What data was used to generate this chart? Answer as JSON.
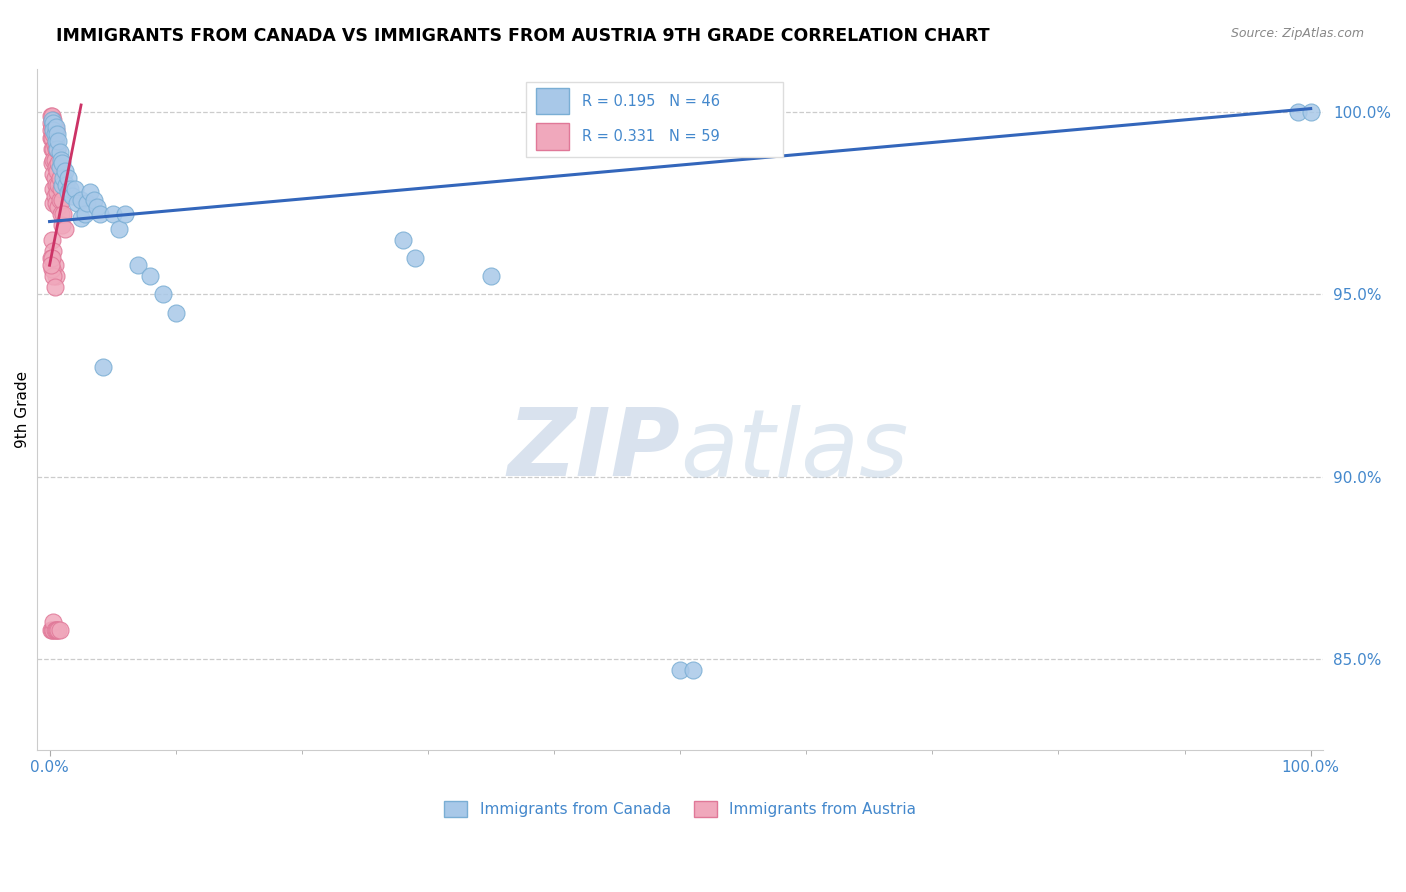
{
  "title": "IMMIGRANTS FROM CANADA VS IMMIGRANTS FROM AUSTRIA 9TH GRADE CORRELATION CHART",
  "source": "Source: ZipAtlas.com",
  "ylabel": "9th Grade",
  "xlim": [
    -0.01,
    1.01
  ],
  "ylim": [
    0.825,
    1.012
  ],
  "yticks": [
    0.85,
    0.9,
    0.95,
    1.0
  ],
  "ytick_labels": [
    "85.0%",
    "90.0%",
    "95.0%",
    "100.0%"
  ],
  "xtick_labels": [
    "0.0%",
    "100.0%"
  ],
  "canada_color": "#a8c8e8",
  "austria_color": "#f0a8bc",
  "canada_edge": "#7aaed4",
  "austria_edge": "#e07898",
  "trendline_canada_color": "#3366bb",
  "trendline_austria_color": "#cc3366",
  "R_canada": 0.195,
  "N_canada": 46,
  "R_austria": 0.331,
  "N_austria": 59,
  "canada_trendline_x": [
    0.0,
    1.0
  ],
  "canada_trendline_y": [
    0.97,
    1.001
  ],
  "austria_trendline_x": [
    0.0,
    0.025
  ],
  "austria_trendline_y": [
    0.958,
    1.002
  ],
  "canada_x": [
    0.002,
    0.003,
    0.003,
    0.004,
    0.005,
    0.005,
    0.006,
    0.006,
    0.007,
    0.008,
    0.008,
    0.009,
    0.01,
    0.01,
    0.011,
    0.012,
    0.013,
    0.015,
    0.015,
    0.016,
    0.018,
    0.02,
    0.022,
    0.025,
    0.025,
    0.028,
    0.03,
    0.032,
    0.035,
    0.038,
    0.04,
    0.042,
    0.05,
    0.055,
    0.06,
    0.07,
    0.08,
    0.09,
    0.1,
    0.28,
    0.29,
    0.35,
    0.99,
    1.0,
    0.5,
    0.51
  ],
  "canada_y": [
    0.998,
    0.997,
    0.995,
    0.994,
    0.996,
    0.992,
    0.994,
    0.99,
    0.992,
    0.989,
    0.985,
    0.987,
    0.986,
    0.98,
    0.982,
    0.984,
    0.98,
    0.982,
    0.978,
    0.979,
    0.977,
    0.979,
    0.975,
    0.976,
    0.971,
    0.972,
    0.975,
    0.978,
    0.976,
    0.974,
    0.972,
    0.93,
    0.972,
    0.968,
    0.972,
    0.958,
    0.955,
    0.95,
    0.945,
    0.965,
    0.96,
    0.955,
    1.0,
    1.0,
    0.847,
    0.847
  ],
  "austria_x": [
    0.001,
    0.001,
    0.001,
    0.001,
    0.002,
    0.002,
    0.002,
    0.002,
    0.002,
    0.003,
    0.003,
    0.003,
    0.003,
    0.003,
    0.003,
    0.003,
    0.004,
    0.004,
    0.004,
    0.004,
    0.004,
    0.005,
    0.005,
    0.005,
    0.005,
    0.005,
    0.006,
    0.006,
    0.006,
    0.007,
    0.007,
    0.007,
    0.008,
    0.008,
    0.009,
    0.009,
    0.01,
    0.01,
    0.011,
    0.012,
    0.002,
    0.003,
    0.004,
    0.005,
    0.001,
    0.002,
    0.003,
    0.004,
    0.001,
    0.002,
    0.003,
    0.003,
    0.004,
    0.005,
    0.006,
    0.007,
    0.008,
    0.002,
    0.001
  ],
  "austria_y": [
    0.999,
    0.997,
    0.995,
    0.993,
    0.999,
    0.996,
    0.993,
    0.99,
    0.986,
    0.998,
    0.994,
    0.99,
    0.987,
    0.983,
    0.979,
    0.975,
    0.996,
    0.991,
    0.987,
    0.982,
    0.977,
    0.995,
    0.99,
    0.985,
    0.98,
    0.975,
    0.99,
    0.984,
    0.978,
    0.986,
    0.98,
    0.974,
    0.982,
    0.976,
    0.979,
    0.972,
    0.976,
    0.969,
    0.972,
    0.968,
    0.965,
    0.962,
    0.958,
    0.955,
    0.96,
    0.957,
    0.955,
    0.952,
    0.858,
    0.858,
    0.858,
    0.86,
    0.858,
    0.858,
    0.858,
    0.858,
    0.858,
    0.96,
    0.958
  ],
  "watermark_zip_color": "#c8d8ec",
  "watermark_atlas_color": "#c8d8ec"
}
